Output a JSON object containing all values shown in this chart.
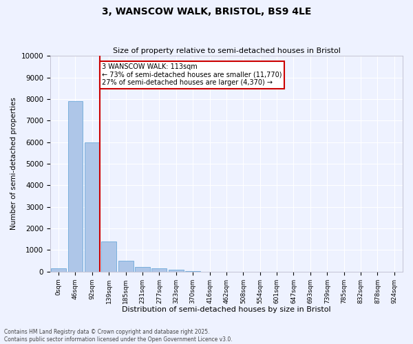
{
  "title_line1": "3, WANSCOW WALK, BRISTOL, BS9 4LE",
  "title_line2": "Size of property relative to semi-detached houses in Bristol",
  "xlabel": "Distribution of semi-detached houses by size in Bristol",
  "ylabel": "Number of semi-detached properties",
  "bar_color": "#aec6e8",
  "bar_edge_color": "#5a9fd4",
  "bin_labels": [
    "0sqm",
    "46sqm",
    "92sqm",
    "139sqm",
    "185sqm",
    "231sqm",
    "277sqm",
    "323sqm",
    "370sqm",
    "416sqm",
    "462sqm",
    "508sqm",
    "554sqm",
    "601sqm",
    "647sqm",
    "693sqm",
    "739sqm",
    "785sqm",
    "832sqm",
    "878sqm",
    "924sqm"
  ],
  "bar_heights": [
    150,
    7900,
    6000,
    1400,
    500,
    230,
    150,
    80,
    30,
    0,
    0,
    0,
    0,
    0,
    0,
    0,
    0,
    0,
    0,
    0,
    0
  ],
  "red_line_x": 2.45,
  "red_line_color": "#cc0000",
  "annotation_text": "3 WANSCOW WALK: 113sqm\n← 73% of semi-detached houses are smaller (11,770)\n27% of semi-detached houses are larger (4,370) →",
  "annotation_box_color": "#cc0000",
  "ylim": [
    0,
    10000
  ],
  "yticks": [
    0,
    1000,
    2000,
    3000,
    4000,
    5000,
    6000,
    7000,
    8000,
    9000,
    10000
  ],
  "background_color": "#eef2ff",
  "grid_color": "#ffffff",
  "footer_line1": "Contains HM Land Registry data © Crown copyright and database right 2025.",
  "footer_line2": "Contains public sector information licensed under the Open Government Licence v3.0."
}
